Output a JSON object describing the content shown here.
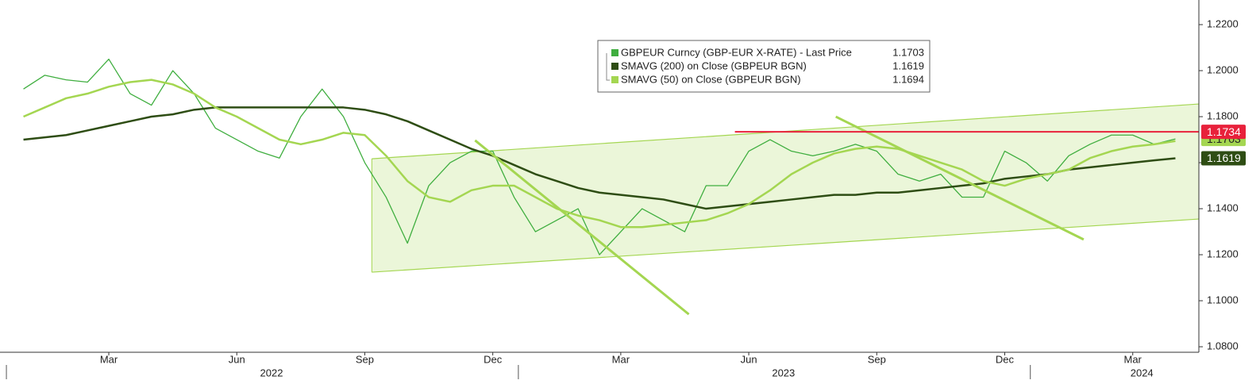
{
  "chart_data": {
    "type": "line",
    "legend": [
      {
        "name": "GBPEUR Curncy (GBP-EUR X-RATE) - Last Price"
      },
      {
        "name": "SMAVG (200)  on Close (GBPEUR BGN)"
      },
      {
        "name": "SMAVG (50)  on Close (GBPEUR BGN)"
      }
    ],
    "categories": [
      null,
      null,
      null,
      null,
      "Mar",
      null,
      null,
      null,
      null,
      null,
      "Jun",
      null,
      null,
      null,
      null,
      null,
      "Sep",
      null,
      null,
      null,
      null,
      null,
      "Dec",
      null,
      null,
      null,
      null,
      null,
      "Mar",
      null,
      null,
      null,
      null,
      null,
      "Jun",
      null,
      null,
      null,
      null,
      null,
      "Sep",
      null,
      null,
      null,
      null,
      null,
      "Dec",
      null,
      null,
      null,
      null,
      null,
      "Mar",
      null,
      null
    ],
    "years": [
      "2022",
      "2023",
      "2024"
    ],
    "year_starts": [
      0,
      24,
      48
    ],
    "xlim": [
      -1.1,
      55.1
    ],
    "ylim": [
      1.0776,
      1.2307
    ],
    "yticks": [
      {
        "value": 1.08,
        "label": "1.0800"
      },
      {
        "value": 1.1,
        "label": "1.1000"
      },
      {
        "value": 1.12,
        "label": "1.1200"
      },
      {
        "value": 1.14,
        "label": "1.1400"
      },
      {
        "value": 1.16,
        "label": "1.1600"
      },
      {
        "value": 1.18,
        "label": "1.1800"
      },
      {
        "value": 1.2,
        "label": "1.2000"
      },
      {
        "value": 1.22,
        "label": "1.2200"
      }
    ],
    "series": [
      {
        "name": "GBPEUR Curncy (GBP-EUR X-RATE) - Last Price",
        "color": "#3fae3f",
        "values": [
          1.192,
          1.198,
          1.196,
          1.195,
          1.205,
          1.19,
          1.185,
          1.2,
          1.19,
          1.175,
          1.17,
          1.165,
          1.162,
          1.18,
          1.192,
          1.18,
          1.16,
          1.145,
          1.125,
          1.15,
          1.16,
          1.165,
          1.165,
          1.145,
          1.13,
          1.135,
          1.14,
          1.12,
          1.13,
          1.14,
          1.135,
          1.13,
          1.15,
          1.15,
          1.165,
          1.17,
          1.165,
          1.163,
          1.165,
          1.168,
          1.165,
          1.155,
          1.152,
          1.155,
          1.145,
          1.145,
          1.165,
          1.16,
          1.152,
          1.163,
          1.168,
          1.172,
          1.172,
          1.168,
          1.1703
        ]
      },
      {
        "name": "SMAVG (200)  on Close (GBPEUR BGN)",
        "color": "#2e4d14",
        "values": [
          1.17,
          1.171,
          1.172,
          1.174,
          1.176,
          1.178,
          1.18,
          1.181,
          1.183,
          1.184,
          1.184,
          1.184,
          1.184,
          1.184,
          1.184,
          1.184,
          1.183,
          1.181,
          1.178,
          1.174,
          1.17,
          1.166,
          1.163,
          1.159,
          1.155,
          1.152,
          1.149,
          1.147,
          1.146,
          1.145,
          1.144,
          1.142,
          1.14,
          1.141,
          1.142,
          1.143,
          1.144,
          1.145,
          1.146,
          1.146,
          1.147,
          1.147,
          1.148,
          1.149,
          1.15,
          1.151,
          1.153,
          1.154,
          1.155,
          1.157,
          1.158,
          1.159,
          1.16,
          1.161,
          1.1619
        ]
      },
      {
        "name": "SMAVG (50)  on Close (GBPEUR BGN)",
        "color": "#a4d651",
        "values": [
          1.18,
          1.184,
          1.188,
          1.19,
          1.193,
          1.195,
          1.196,
          1.194,
          1.19,
          1.184,
          1.18,
          1.175,
          1.17,
          1.168,
          1.17,
          1.173,
          1.172,
          1.163,
          1.152,
          1.145,
          1.143,
          1.148,
          1.15,
          1.15,
          1.145,
          1.14,
          1.137,
          1.135,
          1.132,
          1.132,
          1.133,
          1.134,
          1.135,
          1.138,
          1.142,
          1.148,
          1.155,
          1.16,
          1.164,
          1.166,
          1.167,
          1.166,
          1.163,
          1.16,
          1.157,
          1.152,
          1.15,
          1.153,
          1.155,
          1.157,
          1.162,
          1.165,
          1.167,
          1.168,
          1.1694
        ]
      }
    ],
    "hline": {
      "value": 1.1734,
      "x_start": 33.35,
      "color": "#e8213b"
    },
    "channel": {
      "x": [
        16.33,
        55.1
      ],
      "upper": [
        1.1617,
        1.1855
      ],
      "lower": [
        1.1124,
        1.1355
      ],
      "color": "#a4d651"
    },
    "trendlines": [
      {
        "x": [
          21.17,
          31.19
        ],
        "y": [
          1.1697,
          1.0941
        ]
      },
      {
        "x": [
          38.08,
          49.7
        ],
        "y": [
          1.18,
          1.1266
        ]
      }
    ]
  }
}
